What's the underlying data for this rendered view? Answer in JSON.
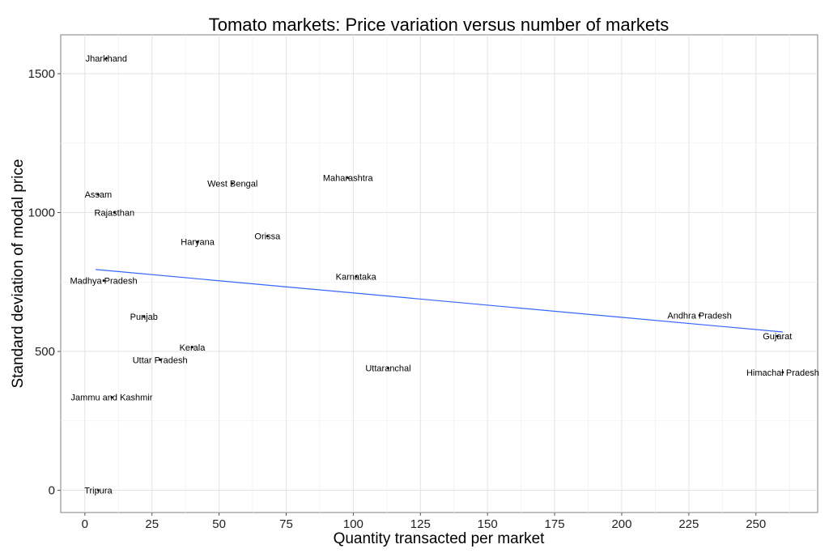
{
  "chart_data": {
    "type": "scatter",
    "title": "Tomato markets: Price variation versus number of markets",
    "xlabel": "Quantity transacted per market",
    "ylabel": "Standard deviation of modal price",
    "xlim": [
      -9,
      273
    ],
    "ylim": [
      -80,
      1640
    ],
    "x_ticks": [
      0,
      25,
      50,
      75,
      100,
      125,
      150,
      175,
      200,
      225,
      250
    ],
    "y_ticks": [
      0,
      500,
      1000,
      1500
    ],
    "grid": true,
    "legend": "none",
    "points": [
      {
        "label": "Jharkhand",
        "x": 8,
        "y": 1555
      },
      {
        "label": "Assam",
        "x": 5,
        "y": 1065
      },
      {
        "label": "Rajasthan",
        "x": 11,
        "y": 1000
      },
      {
        "label": "West Bengal",
        "x": 55,
        "y": 1105
      },
      {
        "label": "Maharashtra",
        "x": 98,
        "y": 1125
      },
      {
        "label": "Haryana",
        "x": 42,
        "y": 895
      },
      {
        "label": "Orissa",
        "x": 68,
        "y": 915
      },
      {
        "label": "Madhya Pradesh",
        "x": 7,
        "y": 755
      },
      {
        "label": "Karnataka",
        "x": 101,
        "y": 770
      },
      {
        "label": "Punjab",
        "x": 22,
        "y": 625
      },
      {
        "label": "Andhra Pradesh",
        "x": 229,
        "y": 630
      },
      {
        "label": "Gujarat",
        "x": 258,
        "y": 555
      },
      {
        "label": "Kerala",
        "x": 40,
        "y": 515
      },
      {
        "label": "Uttar Pradesh",
        "x": 28,
        "y": 470
      },
      {
        "label": "Uttaranchal",
        "x": 113,
        "y": 440
      },
      {
        "label": "Himachal Pradesh",
        "x": 260,
        "y": 425
      },
      {
        "label": "Jammu and Kashmir",
        "x": 10,
        "y": 335
      },
      {
        "label": "Tripura",
        "x": 5,
        "y": 0
      }
    ],
    "trend_line": {
      "x": [
        4,
        260
      ],
      "y": [
        795,
        570
      ]
    },
    "colors": {
      "trend": "#3366ff",
      "points": "#000000"
    }
  }
}
